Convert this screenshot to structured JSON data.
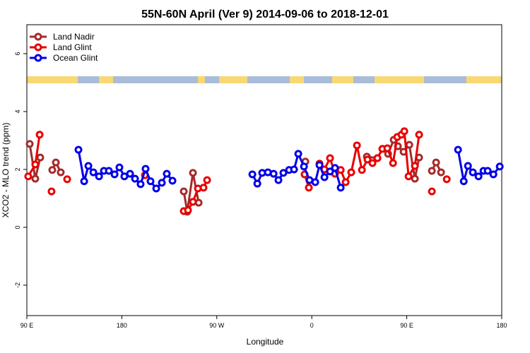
{
  "chart_data": {
    "type": "line",
    "title": "55N-60N April (Ver 9)   2014-09-06 to 2018-12-01",
    "xlabel": "Longitude",
    "ylabel": "XCO2 - MLO trend (ppm)",
    "xlim": [
      90,
      540
    ],
    "ylim": [
      -3.05,
      7.0
    ],
    "xticks": [
      {
        "value": 90,
        "label": "90 E"
      },
      180,
      {
        "value": 270,
        "label": "90 W"
      },
      {
        "value": 360,
        "label": "0"
      },
      {
        "value": 450,
        "label": "90 E"
      },
      180
    ],
    "yticks": [
      -2,
      0,
      2,
      4,
      6
    ],
    "legend": "top-left",
    "series": [
      {
        "name": "Land Nadir",
        "color": "#a52a2a",
        "x": [
          92.7,
          98,
          102.7,
          null,
          114.1,
          117.5,
          122.1,
          null,
          238.7,
          242,
          247.4,
          252.8,
          null,
          353.9,
          null,
          412.2,
          422.2,
          426.9,
          432.3,
          437.6,
          441.6,
          447,
          452.4,
          457.7,
          461.7,
          null,
          473.8,
          477.8,
          482.5
        ],
        "values": [
          2.88,
          1.68,
          2.41,
          null,
          1.98,
          2.24,
          1.9,
          null,
          1.24,
          0.54,
          1.88,
          0.85,
          null,
          2.27,
          null,
          2.44,
          2.39,
          2.71,
          2.54,
          3.02,
          2.8,
          2.61,
          2.85,
          1.68,
          2.41,
          null,
          1.95,
          2.24,
          1.9
        ]
      },
      {
        "name": "Land Glint",
        "color": "#e80000",
        "x": [
          91.3,
          98,
          102.1,
          null,
          113.4,
          null,
          128.2,
          null,
          201.9,
          null,
          238.7,
          242.7,
          247.4,
          252.1,
          257.4,
          260.8,
          null,
          353.2,
          357.2,
          null,
          367.3,
          372,
          377.3,
          382,
          387.4,
          392.1,
          397.4,
          402.8,
          407.5,
          412.8,
          417.5,
          422.2,
          426.9,
          431.6,
          437,
          441,
          445,
          447.7,
          451.7,
          457.7,
          461.7,
          null,
          473.8,
          null,
          487.9
        ],
        "values": [
          1.76,
          2.17,
          3.2,
          null,
          1.24,
          null,
          1.66,
          null,
          1.8,
          null,
          0.56,
          0.59,
          0.88,
          1.34,
          1.37,
          1.63,
          null,
          1.83,
          1.37,
          null,
          2.2,
          2.0,
          2.39,
          1.85,
          1.98,
          1.56,
          1.9,
          2.83,
          1.98,
          2.34,
          2.22,
          2.39,
          2.71,
          2.73,
          2.22,
          3.12,
          3.2,
          3.32,
          1.76,
          2.12,
          3.2,
          null,
          1.24,
          null,
          1.66
        ]
      },
      {
        "name": "Ocean Glint",
        "color": "#0000e8",
        "x": [
          138.9,
          144.3,
          148.3,
          153,
          158.4,
          163,
          167.7,
          173.1,
          177.7,
          182.4,
          187.8,
          192.5,
          197.8,
          202.5,
          207.2,
          212.6,
          217.9,
          222.6,
          228,
          null,
          303.7,
          308.4,
          313,
          318.4,
          323.8,
          328.4,
          333.1,
          338.5,
          343.2,
          347.2,
          352.6,
          357.9,
          363.3,
          367.3,
          372,
          377.3,
          382,
          387.4,
          null,
          498.6,
          504,
          508,
          512.6,
          518,
          522.7,
          526.7,
          532.1,
          538.1
        ],
        "values": [
          2.68,
          1.59,
          2.12,
          1.9,
          1.76,
          1.95,
          1.95,
          1.83,
          2.07,
          1.76,
          1.85,
          1.68,
          1.49,
          2.02,
          1.59,
          1.34,
          1.54,
          1.85,
          1.61,
          null,
          1.83,
          1.51,
          1.88,
          1.9,
          1.85,
          1.63,
          1.88,
          1.98,
          2.0,
          2.54,
          2.1,
          1.63,
          1.56,
          2.15,
          1.73,
          1.93,
          2.05,
          1.37,
          null,
          2.68,
          1.59,
          2.12,
          1.9,
          1.76,
          1.95,
          1.95,
          1.83,
          2.1
        ]
      }
    ]
  }
}
